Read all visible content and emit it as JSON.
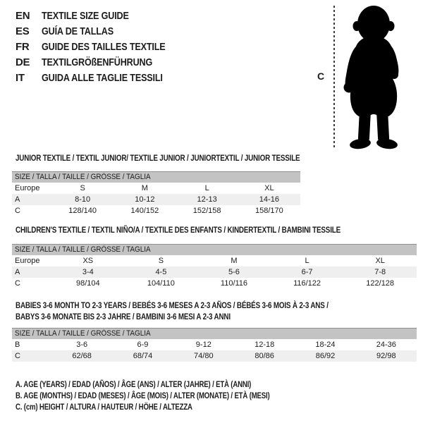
{
  "header": {
    "languages": [
      {
        "code": "EN",
        "label": "TEXTILE SIZE GUIDE"
      },
      {
        "code": "ES",
        "label": "GUÍA DE TALLAS"
      },
      {
        "code": "FR",
        "label": "GUIDE DES TAILLES TEXTILE"
      },
      {
        "code": "DE",
        "label": "TEXTILGRÖßENFÜHRUNG"
      },
      {
        "code": "IT",
        "label": "GUIDA ALLE TAGLIE TESSILI"
      }
    ]
  },
  "figure": {
    "icon": "toddler-silhouette-icon",
    "measure_label": "C"
  },
  "tables": [
    {
      "title": "JUNIOR TEXTILE / TEXTIL JUNIOR/ TEXTILE JUNIOR / JUNIORTEXTIL / JUNIOR TESSILE",
      "size_header": "SIZE / TALLA / TAILLE / GRÖSSE / TAGLIA",
      "rows": [
        {
          "label": "Europe",
          "values": [
            "S",
            "M",
            "L",
            "XL"
          ],
          "shaded": false
        },
        {
          "label": "A",
          "values": [
            "8-10",
            "10-12",
            "12-13",
            "14-16"
          ],
          "shaded": true
        },
        {
          "label": "C",
          "values": [
            "128/140",
            "140/152",
            "152/158",
            "158/170"
          ],
          "shaded": false
        }
      ]
    },
    {
      "title": "CHILDREN'S TEXTILE / TEXTIL NIÑO/A / TEXTILE DES ENFANTS / KINDERTEXTIL / BAMBINI TESSILE",
      "size_header": "SIZE / TALLA / TAILLE / GRÖSSE / TAGLIA",
      "rows": [
        {
          "label": "Europe",
          "values": [
            "XS",
            "S",
            "M",
            "L",
            "XL"
          ],
          "shaded": false
        },
        {
          "label": "A",
          "values": [
            "3-4",
            "4-5",
            "5-6",
            "6-7",
            "7-8"
          ],
          "shaded": true
        },
        {
          "label": "C",
          "values": [
            "98/104",
            "104/110",
            "110/116",
            "116/122",
            "122/128"
          ],
          "shaded": false
        }
      ]
    },
    {
      "title": "BABIES 3-6 MONTH TO 2-3 YEARS / BEBÉS 3-6 MESES A 2-3 AÑOS / BÉBÉS 3-6 MOIS À 2-3 ANS /",
      "title_line2": "BABYS 3-6 MONATE BIS 2-3 JAHRE / BAMBINI 3-6 MESI A 2-3 ANNI",
      "size_header": "SIZE / TALLA / TAILLE / GRÖSSE / TAGLIA",
      "rows": [
        {
          "label": "B",
          "values": [
            "3-6",
            "6-9",
            "9-12",
            "12-18",
            "18-24",
            "24-36"
          ],
          "shaded": false
        },
        {
          "label": "C",
          "values": [
            "62/68",
            "68/74",
            "74/80",
            "80/86",
            "86/92",
            "92/98"
          ],
          "shaded": true
        }
      ]
    }
  ],
  "notes": [
    "A. AGE (YEARS) / EDAD (AÑOS) / ÂGE (ANS) / ALTER (JAHRE) / ETÀ (ANNI)",
    "B. AGE (MONTHS) / EDAD (MESES) / ÂGE (MOIS) / ALTER (MONATE) / ETÀ (MESI)",
    "C. (cm) HEIGHT / ALTURA / HAUTEUR / HÖHE / ALTEZZA"
  ],
  "colors": {
    "header_bar": "#c3c3c3",
    "row_shade": "#efefef",
    "text": "#1c1c1c",
    "silhouette": "#000000",
    "dotted_line": "#3c3c3c"
  }
}
